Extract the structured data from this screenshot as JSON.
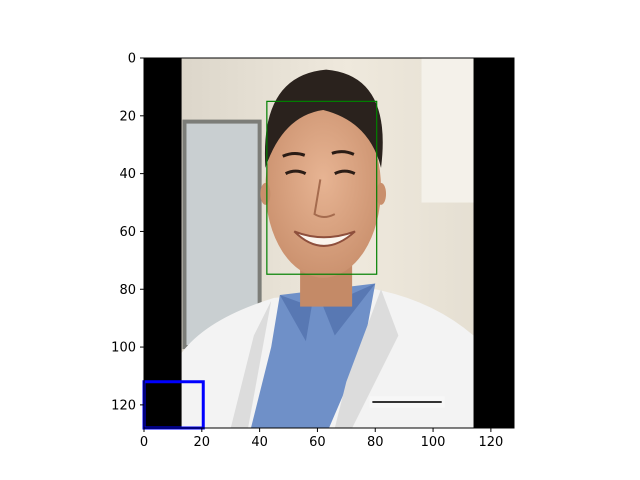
{
  "chart_data": {
    "type": "image",
    "image_content": "photo of a smiling man with short dark hair wearing a white lab coat over a blue collared shirt, standing in an office/clinic; black padding bars on left and right",
    "xlim": [
      0,
      128
    ],
    "ylim": [
      128,
      0
    ],
    "x_ticks": [
      0,
      20,
      40,
      60,
      80,
      100,
      120
    ],
    "y_ticks": [
      0,
      20,
      40,
      60,
      80,
      100,
      120
    ],
    "x_tick_labels": [
      "0",
      "20",
      "40",
      "60",
      "80",
      "100",
      "120"
    ],
    "y_tick_labels": [
      "0",
      "20",
      "40",
      "60",
      "80",
      "100",
      "120"
    ],
    "padding_columns": {
      "left": [
        0,
        13
      ],
      "right": [
        114,
        128
      ]
    },
    "boxes": [
      {
        "name": "face-box",
        "color": "#008000",
        "x0": 42.5,
        "y0": 15,
        "x1": 80.5,
        "y1": 74.8
      },
      {
        "name": "corner-box",
        "color": "#0000ff",
        "x0": 0,
        "y0": 112,
        "x1": 20.5,
        "y1": 128
      }
    ],
    "colors": {
      "background_wall": "#e9e3d6",
      "lab_coat": "#f3f3f3",
      "shirt": "#6f90c8",
      "skin": "#d9a27f",
      "hair": "#2a221d",
      "padding": "#000000"
    }
  }
}
